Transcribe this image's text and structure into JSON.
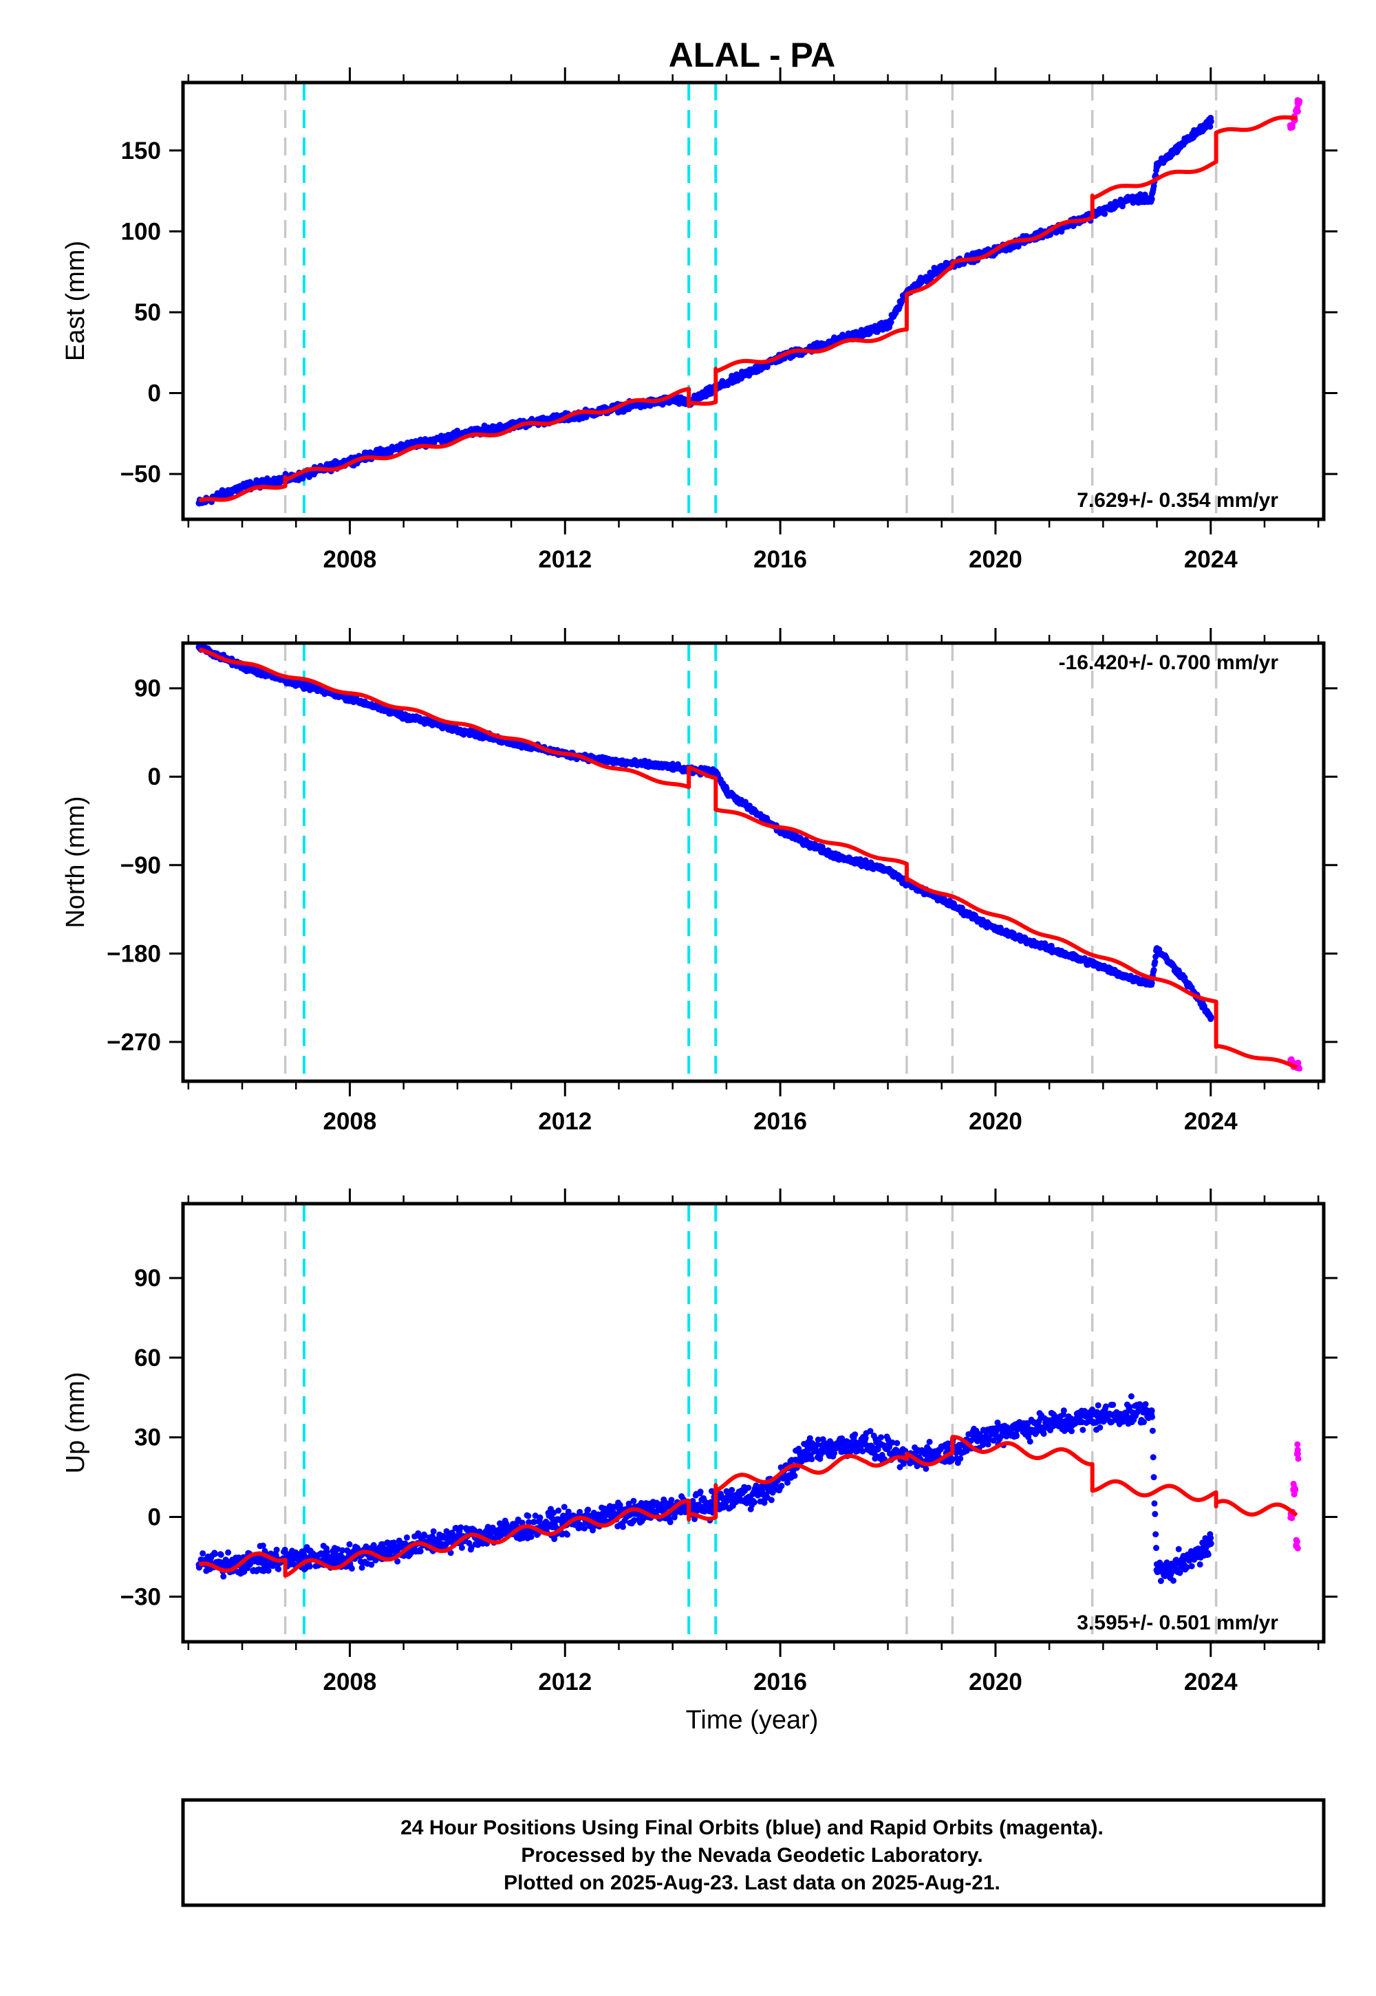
{
  "figure": {
    "title": "ALAL - PA",
    "xlabel": "Time (year)",
    "x_ticks": [
      2008,
      2012,
      2016,
      2020,
      2024
    ],
    "xlim": [
      2004.9,
      2026.1
    ],
    "colors": {
      "final_orbits": "#0000ff",
      "rapid_orbits": "#ff00ff",
      "model": "#ff0000",
      "equipment_change": "#c8c8c8",
      "earthquake": "#00e5ee"
    },
    "event_lines": [
      {
        "year": 2006.8,
        "kind": "equipment_change"
      },
      {
        "year": 2007.15,
        "kind": "earthquake"
      },
      {
        "year": 2014.3,
        "kind": "earthquake"
      },
      {
        "year": 2014.8,
        "kind": "earthquake"
      },
      {
        "year": 2018.35,
        "kind": "equipment_change"
      },
      {
        "year": 2019.2,
        "kind": "equipment_change"
      },
      {
        "year": 2021.8,
        "kind": "equipment_change"
      },
      {
        "year": 2024.1,
        "kind": "equipment_change"
      }
    ]
  },
  "footer": {
    "line1": "24 Hour Positions Using Final Orbits (blue) and Rapid Orbits (magenta).",
    "line2": "Processed by the Nevada Geodetic Laboratory.",
    "line3": "Plotted on 2025-Aug-23. Last data on 2025-Aug-21."
  },
  "chart_data": [
    {
      "type": "scatter",
      "component": "east",
      "ylabel": "East (mm)",
      "ylim": [
        -78,
        192
      ],
      "y_ticks": [
        -50,
        0,
        50,
        100,
        150
      ],
      "rate_label": "7.629+/- 0.354 mm/yr",
      "rate_position": "bottom-right",
      "series": [
        {
          "name": "Final Orbits",
          "color_key": "final_orbits",
          "x": [
            2005.2,
            2006.0,
            2007.0,
            2008.0,
            2009.0,
            2010.0,
            2011.0,
            2012.0,
            2013.0,
            2014.0,
            2014.3,
            2014.8,
            2015.5,
            2016.0,
            2017.0,
            2018.0,
            2018.35,
            2019.0,
            2020.0,
            2021.0,
            2021.8,
            2022.5,
            2022.9,
            2023.0,
            2023.5,
            2024.0
          ],
          "y": [
            -68,
            -58,
            -52,
            -42,
            -33,
            -26,
            -20,
            -15,
            -9,
            -4,
            -6,
            3,
            14,
            22,
            32,
            42,
            62,
            78,
            88,
            100,
            110,
            120,
            120,
            140,
            155,
            168
          ]
        },
        {
          "name": "Rapid Orbits",
          "color_key": "rapid_orbits",
          "x": [
            2025.5,
            2025.55,
            2025.6,
            2025.63
          ],
          "y": [
            165,
            170,
            175,
            180
          ]
        },
        {
          "name": "Model",
          "color_key": "model",
          "x": [
            2005.2,
            2006.8,
            2006.8,
            2014.3,
            2014.3,
            2014.8,
            2014.8,
            2018.35,
            2018.35,
            2019.2,
            2019.2,
            2021.8,
            2021.8,
            2024.1,
            2024.1,
            2025.6
          ],
          "y": [
            -68,
            -56,
            -52,
            1,
            -8,
            -4,
            15,
            38,
            60,
            77,
            79,
            110,
            122,
            142,
            160,
            171
          ]
        }
      ]
    },
    {
      "type": "scatter",
      "component": "north",
      "ylabel": "North (mm)",
      "ylim": [
        -310,
        136
      ],
      "y_ticks": [
        -270,
        -180,
        -90,
        0,
        90
      ],
      "rate_label": "-16.420+/- 0.700 mm/yr",
      "rate_position": "top-right",
      "series": [
        {
          "name": "Final Orbits",
          "color_key": "final_orbits",
          "x": [
            2005.2,
            2006.0,
            2007.0,
            2008.0,
            2009.0,
            2010.0,
            2011.0,
            2012.0,
            2013.0,
            2014.0,
            2014.3,
            2014.8,
            2015.0,
            2016.0,
            2017.0,
            2018.0,
            2018.35,
            2019.0,
            2020.0,
            2021.0,
            2021.8,
            2022.5,
            2022.9,
            2023.0,
            2023.5,
            2024.0
          ],
          "y": [
            132,
            112,
            95,
            80,
            62,
            48,
            35,
            23,
            15,
            10,
            6,
            5,
            -15,
            -55,
            -80,
            -95,
            -108,
            -125,
            -155,
            -175,
            -190,
            -205,
            -210,
            -175,
            -205,
            -245
          ]
        },
        {
          "name": "Rapid Orbits",
          "color_key": "rapid_orbits",
          "x": [
            2025.5,
            2025.55,
            2025.6,
            2025.63
          ],
          "y": [
            -290,
            -294,
            -292,
            -296
          ]
        },
        {
          "name": "Model",
          "color_key": "model",
          "x": [
            2005.2,
            2014.3,
            2014.3,
            2014.8,
            2014.8,
            2018.35,
            2018.35,
            2024.1,
            2024.1,
            2025.6
          ],
          "y": [
            128,
            -12,
            8,
            0,
            -32,
            -90,
            -105,
            -230,
            -275,
            -295
          ]
        }
      ]
    },
    {
      "type": "scatter",
      "component": "up",
      "ylabel": "Up (mm)",
      "ylim": [
        -47,
        118
      ],
      "y_ticks": [
        -30,
        0,
        30,
        60,
        90
      ],
      "rate_label": "3.595+/- 0.501 mm/yr",
      "rate_position": "bottom-right",
      "series": [
        {
          "name": "Final Orbits",
          "color_key": "final_orbits",
          "x": [
            2005.2,
            2006.8,
            2008.0,
            2010.0,
            2012.0,
            2014.0,
            2014.8,
            2015.8,
            2016.5,
            2017.5,
            2018.35,
            2019.2,
            2020.0,
            2021.0,
            2022.0,
            2022.9,
            2023.0,
            2023.5,
            2024.0
          ],
          "y": [
            -18,
            -16,
            -15,
            -8,
            -2,
            3,
            5,
            10,
            25,
            28,
            22,
            25,
            32,
            35,
            38,
            40,
            -20,
            -18,
            -10
          ]
        },
        {
          "name": "Rapid Orbits",
          "color_key": "rapid_orbits",
          "x": [
            2025.5,
            2025.55,
            2025.6,
            2025.63
          ],
          "y": [
            0,
            10,
            -10,
            25
          ]
        },
        {
          "name": "Model",
          "color_key": "model",
          "x": [
            2005.2,
            2006.8,
            2006.8,
            2014.3,
            2014.3,
            2014.8,
            2014.8,
            2017.6,
            2018.35,
            2018.35,
            2019.2,
            2019.2,
            2021.8,
            2021.8,
            2024.1,
            2024.1,
            2025.6
          ],
          "y": [
            -20,
            -14,
            -20,
            4,
            -1,
            2,
            12,
            22,
            20,
            22,
            22,
            28,
            22,
            12,
            8,
            4,
            2
          ]
        }
      ]
    }
  ]
}
